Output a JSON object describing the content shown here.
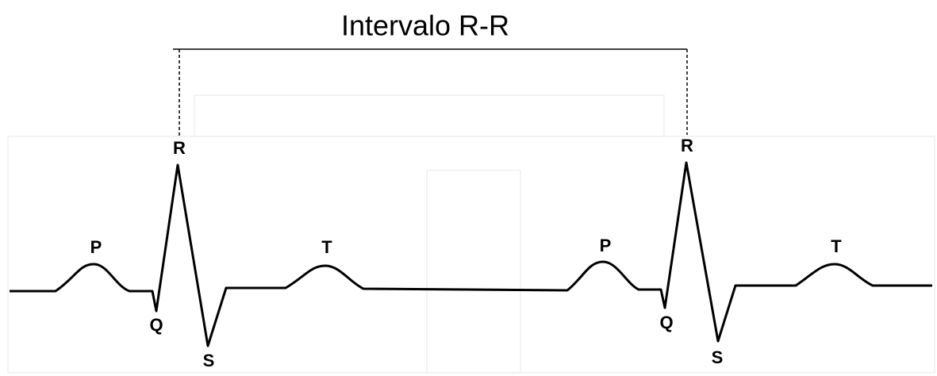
{
  "title": "Intervalo R-R",
  "beats": [
    {
      "labels": {
        "P": "P",
        "Q": "Q",
        "R": "R",
        "S": "S",
        "T": "T"
      }
    },
    {
      "labels": {
        "P": "P",
        "Q": "Q",
        "R": "R",
        "S": "S",
        "T": "T"
      }
    }
  ]
}
